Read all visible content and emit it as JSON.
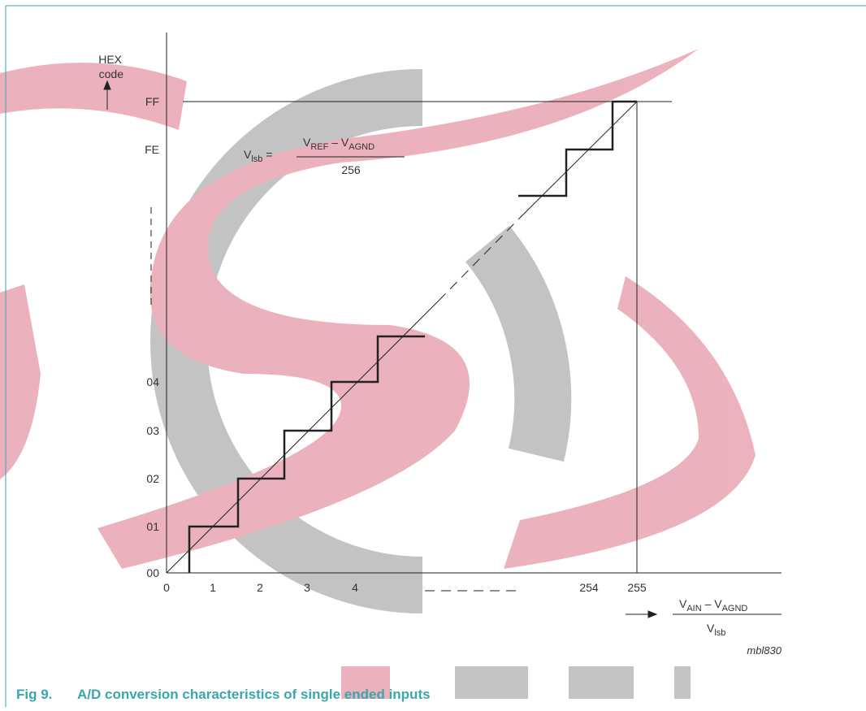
{
  "y_axis": {
    "label": [
      "HEX",
      "code"
    ],
    "ticks": [
      "FF",
      "FE",
      "04",
      "03",
      "02",
      "01",
      "00"
    ]
  },
  "x_axis": {
    "ticks": [
      "0",
      "1",
      "2",
      "3",
      "4",
      "254",
      "255"
    ],
    "label": {
      "numerator": [
        "V",
        "AIN",
        " – V",
        "AGND"
      ],
      "denominator": [
        "V",
        "lsb"
      ]
    }
  },
  "formula": {
    "lhs": [
      "V",
      "lsb",
      " ="
    ],
    "numerator": [
      "V",
      "REF",
      " – V",
      "AGND"
    ],
    "denominator": "256"
  },
  "figure_id": "mbl830",
  "caption": {
    "number": "Fig 9.",
    "text": "A/D conversion characteristics of single ended inputs"
  }
}
